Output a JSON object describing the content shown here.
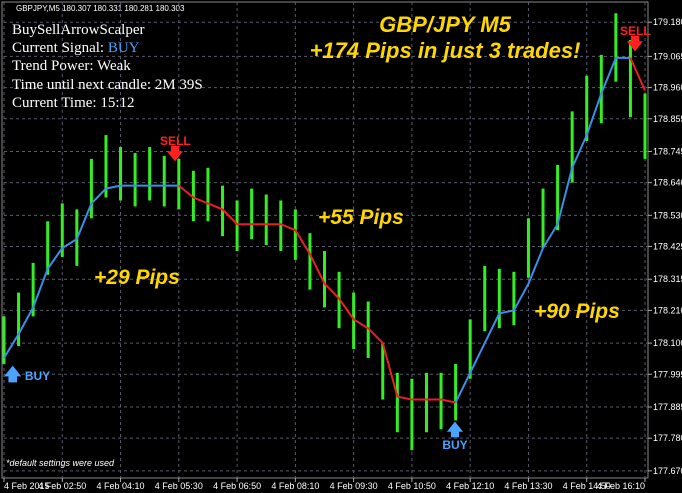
{
  "chart_data": {
    "type": "ohlc",
    "header": "GBPJPY,M5  180.307 180.331 180.281 180.303",
    "title": "GBP/JPY M5",
    "subtitle": "+174 Pips in just 3 trades!",
    "info": {
      "name": "BuySellArrowScalper",
      "signal_label": "Current Signal:",
      "signal": "BUY",
      "trend_power": "Trend Power: Weak",
      "time_left": "Time until next candle: 2M 39S",
      "current_time": "Current Time: 15:12"
    },
    "annotations": [
      "+29 Pips",
      "+55 Pips",
      "+90 Pips"
    ],
    "signals": [
      "BUY",
      "SELL",
      "BUY",
      "SELL"
    ],
    "footnote": "*default settings were used",
    "bar_color": "#33ee22",
    "x": [
      0,
      4,
      8,
      12,
      16,
      20,
      24,
      28,
      32,
      36,
      40,
      44,
      48,
      52,
      56,
      60,
      64,
      68,
      72,
      76,
      80,
      84,
      88,
      92,
      96,
      100,
      104,
      108,
      112,
      116,
      120,
      124,
      128,
      132,
      136,
      140,
      144,
      148,
      152,
      156,
      160,
      164,
      168,
      172,
      176
    ],
    "high": [
      178.19,
      178.27,
      178.37,
      178.51,
      178.57,
      178.55,
      178.72,
      178.8,
      178.76,
      178.74,
      178.76,
      178.73,
      178.72,
      178.68,
      178.69,
      178.63,
      178.58,
      178.62,
      178.6,
      178.58,
      178.55,
      178.47,
      178.41,
      178.34,
      178.27,
      178.24,
      178.1,
      178.0,
      177.98,
      178.0,
      178.0,
      178.03,
      178.18,
      178.36,
      178.35,
      178.34,
      178.52,
      178.62,
      178.7,
      178.88,
      179.0,
      179.07,
      179.21,
      179.12,
      178.94
    ],
    "low": [
      178.03,
      178.09,
      178.19,
      178.33,
      178.39,
      178.36,
      178.52,
      178.59,
      178.58,
      178.56,
      178.58,
      178.56,
      178.55,
      178.51,
      178.51,
      178.46,
      178.41,
      178.45,
      178.43,
      178.41,
      178.38,
      178.28,
      178.22,
      178.15,
      178.08,
      178.05,
      177.91,
      177.8,
      177.74,
      177.8,
      177.81,
      177.84,
      177.98,
      178.14,
      178.15,
      178.16,
      178.32,
      178.42,
      178.48,
      178.64,
      178.78,
      178.84,
      178.98,
      178.86,
      178.72
    ],
    "trend_up": {
      "color": "#3a8fe8",
      "values": [
        178.05,
        178.13,
        178.22,
        178.35,
        178.42,
        178.45,
        178.57,
        178.62,
        178.63,
        178.63,
        178.63,
        178.63,
        178.63,
        null,
        null,
        null,
        null,
        null,
        null,
        null,
        null,
        null,
        null,
        null,
        null,
        null,
        null,
        null,
        null,
        null,
        null,
        177.9,
        178.0,
        178.1,
        178.2,
        178.21,
        178.3,
        178.42,
        178.5,
        178.69,
        178.8,
        178.94,
        179.06,
        179.06,
        null
      ]
    },
    "trend_down": {
      "color": "#e82020",
      "values": [
        null,
        null,
        null,
        null,
        null,
        null,
        null,
        null,
        null,
        null,
        null,
        null,
        178.63,
        178.59,
        178.57,
        178.55,
        178.5,
        178.5,
        178.5,
        178.5,
        178.48,
        178.4,
        178.3,
        178.25,
        178.18,
        178.15,
        178.1,
        177.92,
        177.91,
        177.91,
        177.91,
        177.9,
        null,
        null,
        null,
        null,
        null,
        null,
        null,
        null,
        null,
        null,
        null,
        179.06,
        178.95
      ]
    },
    "xlim": [
      0,
      176
    ],
    "xticks": [
      {
        "value": 0,
        "label": "4 Feb 2015"
      },
      {
        "value": 16,
        "label": "4 Feb 02:50"
      },
      {
        "value": 32,
        "label": "4 Feb 04:10"
      },
      {
        "value": 48,
        "label": "4 Feb 05:30"
      },
      {
        "value": 64,
        "label": "4 Feb 06:50"
      },
      {
        "value": 80,
        "label": "4 Feb 08:10"
      },
      {
        "value": 96,
        "label": "4 Feb 09:30"
      },
      {
        "value": 112,
        "label": "4 Feb 10:50"
      },
      {
        "value": 128,
        "label": "4 Feb 12:10"
      },
      {
        "value": 144,
        "label": "4 Feb 13:30"
      },
      {
        "value": 160,
        "label": "4 Feb 14:50"
      },
      {
        "value": 176,
        "label": "4 Feb 16:10"
      }
    ],
    "ylim": [
      177.646,
      179.248
    ],
    "yticks": [
      {
        "value": 179.18,
        "label": "179.180"
      },
      {
        "value": 179.065,
        "label": "179.065"
      },
      {
        "value": 178.96,
        "label": "178.960"
      },
      {
        "value": 178.855,
        "label": "178.855"
      },
      {
        "value": 178.745,
        "label": "178.745"
      },
      {
        "value": 178.64,
        "label": "178.640"
      },
      {
        "value": 178.53,
        "label": "178.530"
      },
      {
        "value": 178.425,
        "label": "178.425"
      },
      {
        "value": 178.315,
        "label": "178.315"
      },
      {
        "value": 178.21,
        "label": "178.210"
      },
      {
        "value": 178.1,
        "label": "178.100"
      },
      {
        "value": 177.995,
        "label": "177.995"
      },
      {
        "value": 177.885,
        "label": "177.885"
      },
      {
        "value": 177.78,
        "label": "177.780"
      },
      {
        "value": 177.67,
        "label": "177.670"
      }
    ],
    "grid": true
  }
}
